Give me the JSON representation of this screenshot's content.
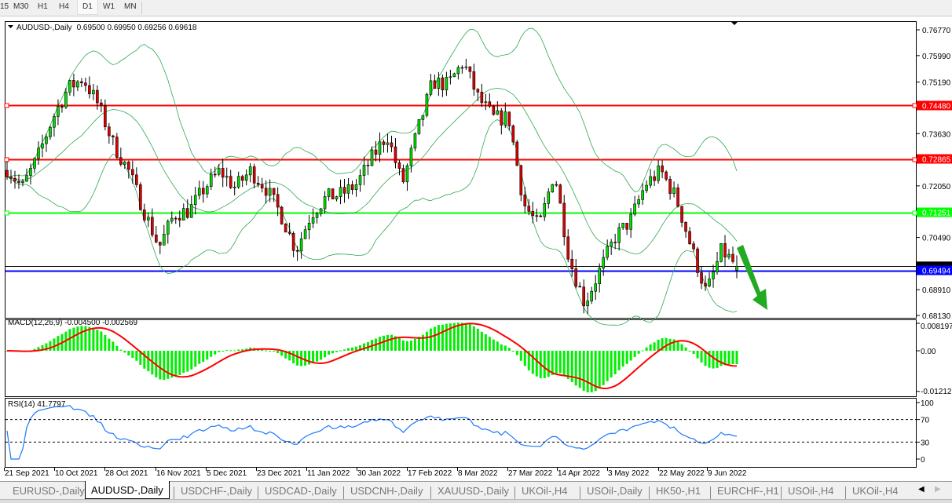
{
  "timeframes": [
    "15",
    "M30",
    "H1",
    "H4",
    "D1",
    "W1",
    "MN"
  ],
  "active_timeframe": "D1",
  "main": {
    "title": "AUDUSD-,Daily",
    "ohlc": "0.69500 0.69950 0.69256 0.69618",
    "price_labels": [
      "0.76770",
      "0.75990",
      "0.75190",
      "0.73630",
      "0.72050",
      "0.70490",
      "0.68910",
      "0.68130"
    ],
    "levels": [
      {
        "price": 0.7448,
        "label": "0.74480",
        "color": "#ff0000"
      },
      {
        "price": 0.72865,
        "label": "0.72865",
        "color": "#ff0000"
      },
      {
        "price": 0.71251,
        "label": "0.71251",
        "color": "#00ff00"
      },
      {
        "price": 0.69494,
        "label": "0.69494",
        "color": "#0000ff"
      }
    ],
    "current_price": 0.69618
  },
  "macd": {
    "title": "MACD(12,26,9) -0.004500 -0.002569",
    "scale_labels": [
      "0.008197",
      "0.00",
      "-0.012121"
    ]
  },
  "rsi": {
    "title": "RSI(14) 41.7797",
    "scale_labels": [
      "100",
      "70",
      "30",
      "0"
    ]
  },
  "date_labels": [
    "21 Sep 2021",
    "10 Oct 2021",
    "28 Oct 2021",
    "16 Nov 2021",
    "5 Dec 2021",
    "23 Dec 2021",
    "11 Jan 2022",
    "30 Jan 2022",
    "17 Feb 2022",
    "8 Mar 2022",
    "27 Mar 2022",
    "14 Apr 2022",
    "3 May 2022",
    "22 May 2022",
    "9 Jun 2022"
  ],
  "tabs": [
    "EURUSD-,Daily",
    "AUDUSD-,Daily",
    "USDCHF-,Daily",
    "USDCAD-,Daily",
    "USDCNH-,Daily",
    "XAUUSD-,Daily",
    "UKOil-,H4",
    "USOil-,Daily",
    "HK50-,H1",
    "EURCHF-,H1",
    "USOil-,H4",
    "UKOil-,H4"
  ],
  "active_tab": "AUDUSD-,Daily",
  "colors": {
    "bull": "#00e000",
    "bear": "#e00000",
    "bands": "#2ea84f",
    "macd_hist": "#00ee00",
    "macd_signal": "#ff0000",
    "rsi": "#1e78ff",
    "arrow": "#22aa22"
  },
  "chart_data": {
    "type": "candlestick",
    "symbol": "AUDUSD-",
    "timeframe": "Daily",
    "ylim": [
      0.6813,
      0.7677
    ],
    "approx_close_path": [
      0.7257,
      0.72,
      0.729,
      0.741,
      0.75,
      0.753,
      0.745,
      0.733,
      0.725,
      0.713,
      0.702,
      0.712,
      0.713,
      0.72,
      0.725,
      0.72,
      0.725,
      0.72,
      0.712,
      0.701,
      0.712,
      0.717,
      0.718,
      0.721,
      0.729,
      0.736,
      0.721,
      0.737,
      0.752,
      0.751,
      0.758,
      0.747,
      0.741,
      0.741,
      0.715,
      0.708,
      0.725,
      0.698,
      0.685,
      0.695,
      0.705,
      0.71,
      0.721,
      0.725,
      0.717,
      0.702,
      0.688,
      0.701,
      0.6962
    ],
    "indicators": [
      "Bollinger Bands(20,2)",
      "MACD(12,26,9)",
      "RSI(14)"
    ]
  }
}
